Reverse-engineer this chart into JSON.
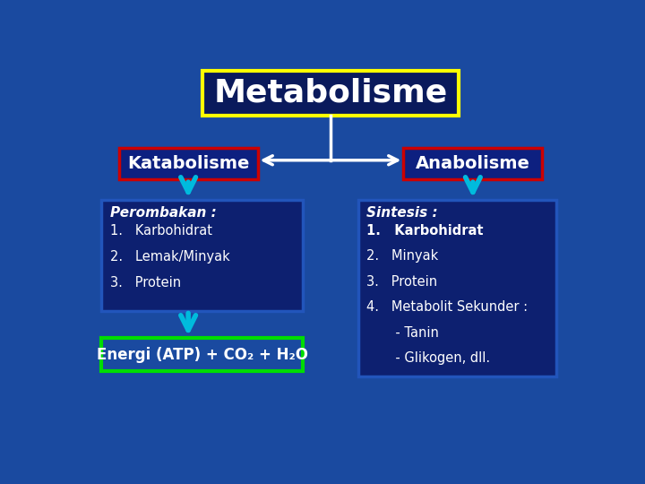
{
  "bg_color": "#1a4aa0",
  "title": "Metabolisme",
  "title_box_bg": "#0a1a5c",
  "title_box_border": "#ffff00",
  "title_color": "#ffffff",
  "katabolisme_label": "Katabolisme",
  "anabolisme_label": "Anabolisme",
  "kata_box_border": "#cc0000",
  "kata_box_bg": "#0d2080",
  "ana_box_border": "#cc0000",
  "ana_box_bg": "#0d2080",
  "perombakan_title": "Perombakan :",
  "perombakan_items": [
    "1.   Karbohidrat",
    "2.   Lemak/Minyak",
    "3.   Protein"
  ],
  "sintesis_title": "Sintesis :",
  "sintesis_items": [
    "1.   Karbohidrat",
    "2.   Minyak",
    "3.   Protein",
    "4.   Metabolit Sekunder :",
    "       - Tanin",
    "       - Glikogen, dll."
  ],
  "energi_label": "Energi (ATP) + CO₂ + H₂O",
  "energi_box_border": "#00dd00",
  "energi_box_bg": "#1a4aa0",
  "arrow_color": "#00bbdd",
  "content_box_border": "#2255bb",
  "content_box_bg": "#0d2070"
}
